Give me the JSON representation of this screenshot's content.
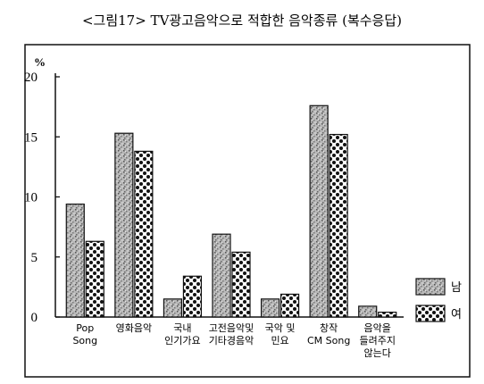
{
  "title": "<그림17> TV광고음악으로 적합한 음악종류 (복수응답)",
  "chart_data": {
    "type": "bar",
    "title": "<그림17> TV광고음악으로 적합한 음악종류 (복수응답)",
    "ylabel": "%",
    "xlabel": "",
    "ylim": [
      0,
      20
    ],
    "yticks": [
      0,
      5,
      10,
      15,
      20
    ],
    "grid": false,
    "legend_position": "right",
    "categories": [
      [
        "Pop",
        "Song"
      ],
      [
        "영화음악"
      ],
      [
        "국내",
        "인기가요"
      ],
      [
        "고전음악및",
        "기타경음악"
      ],
      [
        "국악 및",
        "민요"
      ],
      [
        "창작",
        "CM Song"
      ],
      [
        "음악을",
        "들려주지",
        "않는다"
      ]
    ],
    "series": [
      {
        "name": "남",
        "pattern": "stipple",
        "values": [
          9.4,
          15.3,
          1.5,
          6.9,
          1.5,
          17.6,
          0.9
        ]
      },
      {
        "name": "여",
        "pattern": "dots",
        "values": [
          6.3,
          13.8,
          3.4,
          5.4,
          1.9,
          15.2,
          0.4
        ]
      }
    ]
  }
}
